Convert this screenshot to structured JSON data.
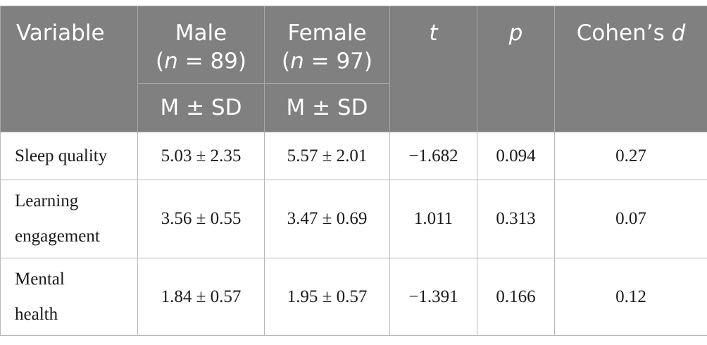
{
  "header": {
    "variable": "Variable",
    "male_label": "Male",
    "male_n_prefix": "(",
    "male_n_var": "n",
    "male_n_suffix": " = 89)",
    "female_label": "Female",
    "female_n_prefix": "(",
    "female_n_var": "n",
    "female_n_suffix": " = 97)",
    "t": "t",
    "p": "p",
    "cohens_prefix": "Cohen’s ",
    "cohens_var": "d",
    "male_sub": "M ± SD",
    "female_sub": "M ± SD"
  },
  "rows": [
    {
      "variable_line1": "Sleep quality",
      "variable_line2": "",
      "male": "5.03 ± 2.35",
      "female": "5.57 ± 2.01",
      "t": "−1.682",
      "p": "0.094",
      "d": "0.27"
    },
    {
      "variable_line1": "Learning",
      "variable_line2": "engagement",
      "male": "3.56 ± 0.55",
      "female": "3.47 ± 0.69",
      "t": "1.011",
      "p": "0.313",
      "d": "0.07"
    },
    {
      "variable_line1": "Mental",
      "variable_line2": "health",
      "male": "1.84 ± 0.57",
      "female": "1.95 ± 0.57",
      "t": "−1.391",
      "p": "0.166",
      "d": "0.12"
    }
  ]
}
